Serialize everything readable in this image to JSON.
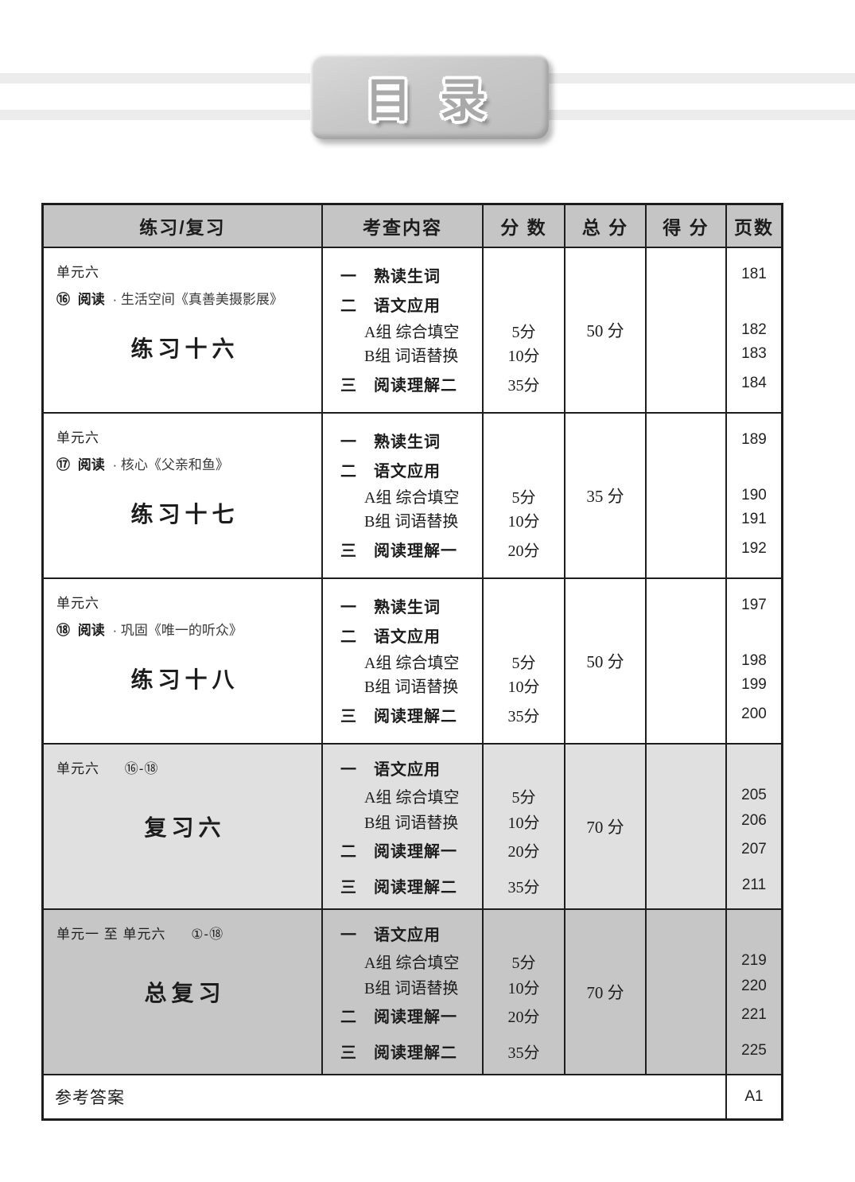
{
  "page": {
    "title": "目 录"
  },
  "table": {
    "headers": [
      "练习/复习",
      "考查内容",
      "分 数",
      "总 分",
      "得 分",
      "页数"
    ],
    "rows": [
      {
        "unit": "单元六",
        "lesson_num": "⑯",
        "lesson_bold": "阅读",
        "lesson_rest": "· 生活空间《真善美摄影展》",
        "range": "",
        "title": "练习十六",
        "total": "50 分",
        "lines": [
          {
            "c": "一　熟读生词",
            "s": "",
            "p": "181"
          },
          {
            "c": "二　语文应用",
            "s": "",
            "p": ""
          },
          {
            "c": "A组 综合填空",
            "s": "5分",
            "p": "182"
          },
          {
            "c": "B组 词语替换",
            "s": "10分",
            "p": "183"
          },
          {
            "c": "三　阅读理解二",
            "s": "35分",
            "p": "184"
          }
        ]
      },
      {
        "unit": "单元六",
        "lesson_num": "⑰",
        "lesson_bold": "阅读",
        "lesson_rest": "· 核心《父亲和鱼》",
        "range": "",
        "title": "练习十七",
        "total": "35 分",
        "lines": [
          {
            "c": "一　熟读生词",
            "s": "",
            "p": "189"
          },
          {
            "c": "二　语文应用",
            "s": "",
            "p": ""
          },
          {
            "c": "A组 综合填空",
            "s": "5分",
            "p": "190"
          },
          {
            "c": "B组 词语替换",
            "s": "10分",
            "p": "191"
          },
          {
            "c": "三　阅读理解一",
            "s": "20分",
            "p": "192"
          }
        ]
      },
      {
        "unit": "单元六",
        "lesson_num": "⑱",
        "lesson_bold": "阅读",
        "lesson_rest": "· 巩固《唯一的听众》",
        "range": "",
        "title": "练习十八",
        "total": "50 分",
        "lines": [
          {
            "c": "一　熟读生词",
            "s": "",
            "p": "197"
          },
          {
            "c": "二　语文应用",
            "s": "",
            "p": ""
          },
          {
            "c": "A组 综合填空",
            "s": "5分",
            "p": "198"
          },
          {
            "c": "B组 词语替换",
            "s": "10分",
            "p": "199"
          },
          {
            "c": "三　阅读理解二",
            "s": "35分",
            "p": "200"
          }
        ]
      },
      {
        "unit": "单元六",
        "lesson_num": "",
        "lesson_bold": "",
        "lesson_rest": "",
        "range": "⑯-⑱",
        "title": "复习六",
        "total": "70 分",
        "lines": [
          {
            "c": "一　语文应用",
            "s": "",
            "p": ""
          },
          {
            "c": "A组 综合填空",
            "s": "5分",
            "p": "205"
          },
          {
            "c": "B组 词语替换",
            "s": "10分",
            "p": "206"
          },
          {
            "c": "二　阅读理解一",
            "s": "20分",
            "p": "207"
          },
          {
            "c": "三　阅读理解二",
            "s": "35分",
            "p": "211"
          }
        ]
      },
      {
        "unit": "单元一 至 单元六",
        "lesson_num": "",
        "lesson_bold": "",
        "lesson_rest": "",
        "range": "①-⑱",
        "title": "总复习",
        "total": "70 分",
        "lines": [
          {
            "c": "一　语文应用",
            "s": "",
            "p": ""
          },
          {
            "c": "A组 综合填空",
            "s": "5分",
            "p": "219"
          },
          {
            "c": "B组 词语替换",
            "s": "10分",
            "p": "220"
          },
          {
            "c": "二　阅读理解一",
            "s": "20分",
            "p": "221"
          },
          {
            "c": "三　阅读理解二",
            "s": "35分",
            "p": "225"
          }
        ]
      }
    ],
    "footer": {
      "label": "参考答案",
      "page": "A1"
    }
  },
  "colors": {
    "header_bg": "#c5c5c5",
    "review_row_bg": "#e0e0e0",
    "final_row_bg": "#c6c6c6",
    "stripe": "#ececec",
    "border": "#1e1e1e"
  }
}
